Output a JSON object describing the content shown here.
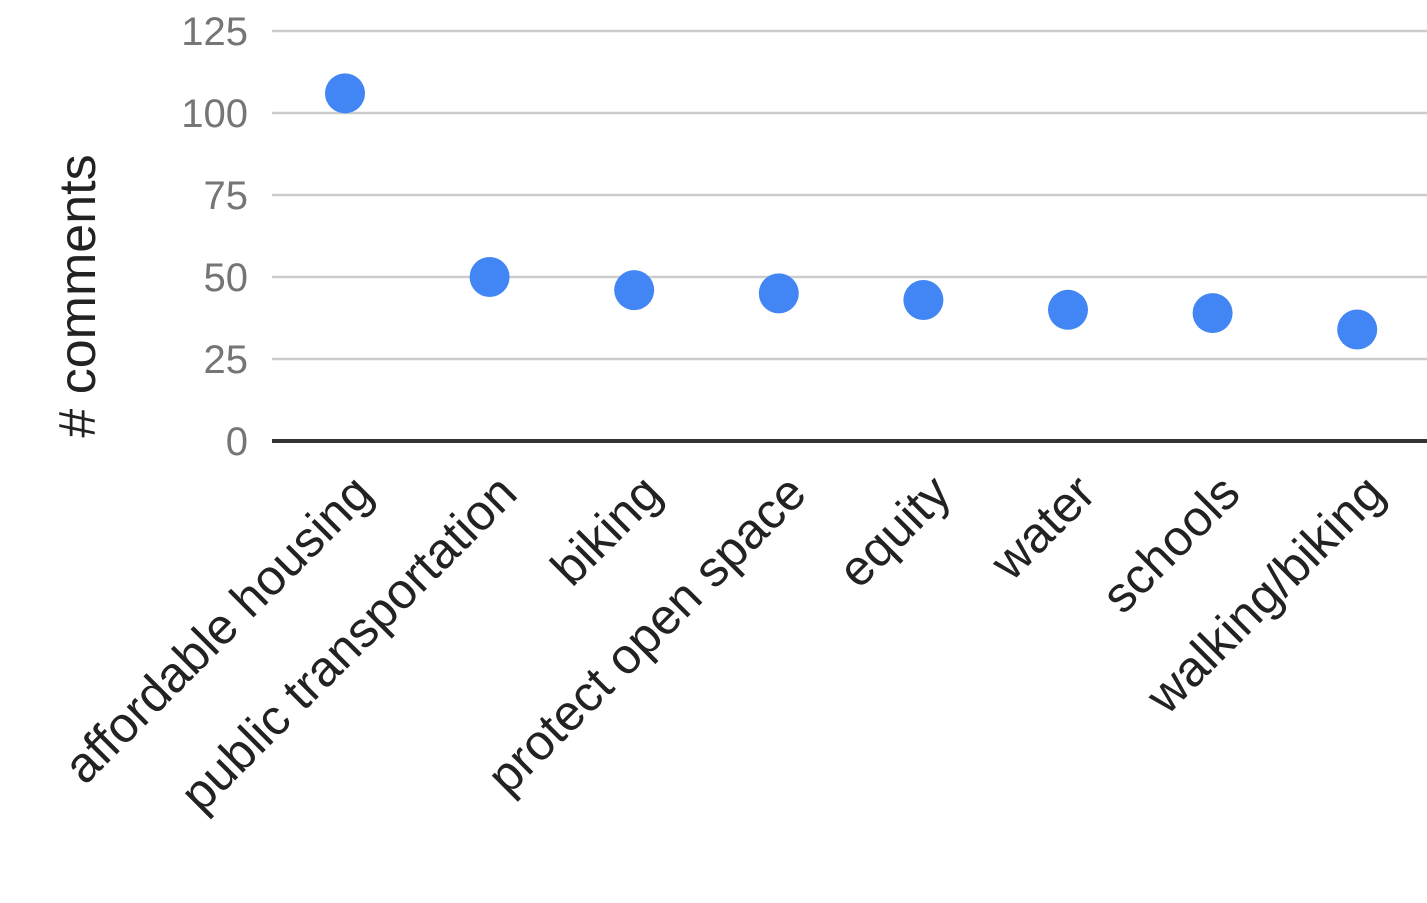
{
  "chart_data": {
    "type": "scatter",
    "title": "",
    "xlabel": "",
    "ylabel": "# comments",
    "ylim": [
      0,
      125
    ],
    "yticks": [
      0,
      25,
      50,
      75,
      100,
      125
    ],
    "grid": true,
    "legend": "none",
    "categories": [
      "affordable housing",
      "public transportation",
      "biking",
      "protect open space",
      "equity",
      "water",
      "schools",
      "walking/biking"
    ],
    "series": [
      {
        "values": [
          106,
          50,
          46,
          45,
          43,
          40,
          39,
          34
        ]
      }
    ],
    "colors": {
      "point": "#4285f4",
      "grid": "#cccccc",
      "baseline": "#333333",
      "tick_text": "#757575",
      "label_text": "#222222"
    }
  }
}
